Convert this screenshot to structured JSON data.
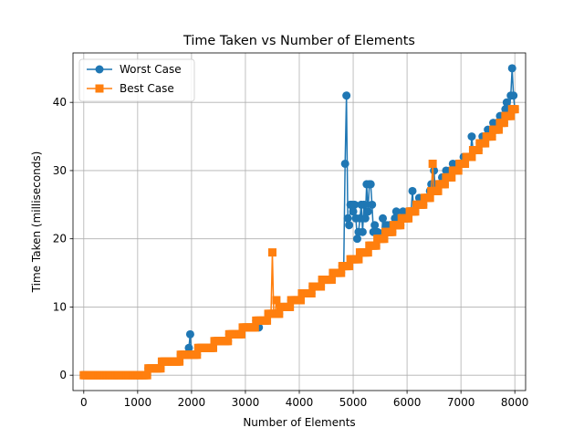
{
  "chart_data": {
    "type": "line",
    "title": "Time Taken vs Number of Elements",
    "xlabel": "Number of Elements",
    "ylabel": "Time Taken (milliseconds)",
    "xlim": [
      -200,
      8200
    ],
    "ylim": [
      -2.25,
      47.25
    ],
    "xticks": [
      0,
      1000,
      2000,
      3000,
      4000,
      5000,
      6000,
      7000,
      8000
    ],
    "yticks": [
      0,
      10,
      20,
      30,
      40
    ],
    "grid": true,
    "legend_position": "upper-left",
    "x_step": 25,
    "x_end": 8000,
    "series": [
      {
        "name": "Worst Case",
        "color": "#1f77b4",
        "marker": "circle",
        "notable_points": [
          {
            "x": 1650,
            "y": 2
          },
          {
            "x": 1800,
            "y": 3
          },
          {
            "x": 1950,
            "y": 4
          },
          {
            "x": 1975,
            "y": 6
          },
          {
            "x": 3250,
            "y": 7
          },
          {
            "x": 4850,
            "y": 31
          },
          {
            "x": 4875,
            "y": 41
          },
          {
            "x": 4900,
            "y": 23
          },
          {
            "x": 4950,
            "y": 25
          },
          {
            "x": 5000,
            "y": 24
          },
          {
            "x": 5050,
            "y": 23
          },
          {
            "x": 5100,
            "y": 21
          },
          {
            "x": 5150,
            "y": 25
          },
          {
            "x": 5200,
            "y": 25
          },
          {
            "x": 5250,
            "y": 28
          },
          {
            "x": 5300,
            "y": 28
          },
          {
            "x": 5350,
            "y": 25
          },
          {
            "x": 5400,
            "y": 22
          },
          {
            "x": 5550,
            "y": 23
          },
          {
            "x": 5800,
            "y": 24
          },
          {
            "x": 6100,
            "y": 27
          },
          {
            "x": 6500,
            "y": 30
          },
          {
            "x": 7200,
            "y": 35
          },
          {
            "x": 7850,
            "y": 40
          },
          {
            "x": 7925,
            "y": 41
          },
          {
            "x": 7950,
            "y": 45
          },
          {
            "x": 7975,
            "y": 41
          }
        ]
      },
      {
        "name": "Best Case",
        "color": "#ff7f0e",
        "marker": "square",
        "notable_points": [
          {
            "x": 3500,
            "y": 18
          },
          {
            "x": 3575,
            "y": 11
          },
          {
            "x": 6475,
            "y": 31
          }
        ]
      }
    ]
  }
}
